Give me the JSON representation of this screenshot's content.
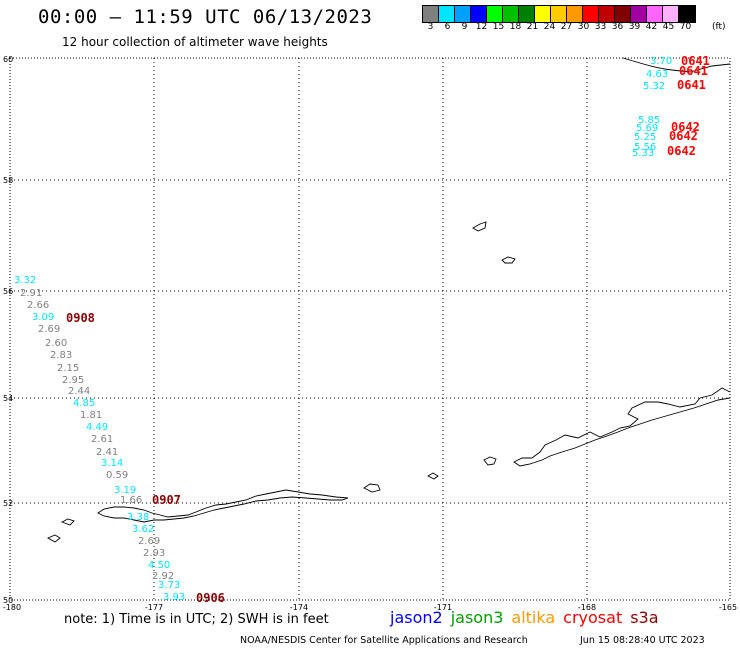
{
  "header": {
    "title": "00:00 — 11:59 UTC 06/13/2023",
    "subtitle": "12 hour collection of altimeter wave heights"
  },
  "legend": {
    "unit": "(ft)",
    "bins": [
      {
        "label": "3",
        "color": "#808080"
      },
      {
        "label": "6",
        "color": "#00e5ff"
      },
      {
        "label": "9",
        "color": "#00a0ff"
      },
      {
        "label": "12",
        "color": "#0000ff"
      },
      {
        "label": "15",
        "color": "#00ff00"
      },
      {
        "label": "18",
        "color": "#00c000"
      },
      {
        "label": "21",
        "color": "#008000"
      },
      {
        "label": "24",
        "color": "#ffff00"
      },
      {
        "label": "27",
        "color": "#ffcc00"
      },
      {
        "label": "30",
        "color": "#ff9900"
      },
      {
        "label": "33",
        "color": "#ff0000"
      },
      {
        "label": "36",
        "color": "#c00000"
      },
      {
        "label": "39",
        "color": "#800000"
      },
      {
        "label": "42",
        "color": "#a000a0"
      },
      {
        "label": "45",
        "color": "#ff66ff"
      },
      {
        "label": "70",
        "color": "#ffb0ff"
      },
      {
        "label": "",
        "color": "#000000"
      }
    ]
  },
  "axes": {
    "lon_labels": [
      "-180",
      "-177",
      "-174",
      "-171",
      "-168",
      "-165"
    ],
    "lat_labels": [
      "60",
      "58",
      "56",
      "54",
      "52",
      "50"
    ]
  },
  "observations": [
    {
      "value": "3.70",
      "color": "#00e5ff"
    },
    {
      "value": "4.63",
      "color": "#00e5ff"
    },
    {
      "value": "5.32",
      "color": "#00e5ff"
    },
    {
      "value": "5.85",
      "color": "#00e5ff"
    },
    {
      "value": "5.69",
      "color": "#00e5ff"
    },
    {
      "value": "5.25",
      "color": "#00e5ff"
    },
    {
      "value": "5.56",
      "color": "#00e5ff"
    },
    {
      "value": "5.33",
      "color": "#00e5ff"
    },
    {
      "value": "3.32",
      "color": "#00e5ff"
    },
    {
      "value": "2.91",
      "color": "#808080"
    },
    {
      "value": "2.66",
      "color": "#808080"
    },
    {
      "value": "3.09",
      "color": "#00e5ff"
    },
    {
      "value": "2.69",
      "color": "#808080"
    },
    {
      "value": "2.60",
      "color": "#808080"
    },
    {
      "value": "2.83",
      "color": "#808080"
    },
    {
      "value": "2.15",
      "color": "#808080"
    },
    {
      "value": "2.95",
      "color": "#808080"
    },
    {
      "value": "2.44",
      "color": "#808080"
    },
    {
      "value": "4.85",
      "color": "#00e5ff"
    },
    {
      "value": "1.81",
      "color": "#808080"
    },
    {
      "value": "4.49",
      "color": "#00e5ff"
    },
    {
      "value": "2.61",
      "color": "#808080"
    },
    {
      "value": "2.41",
      "color": "#808080"
    },
    {
      "value": "3.14",
      "color": "#00e5ff"
    },
    {
      "value": "0.59",
      "color": "#808080"
    },
    {
      "value": "3.19",
      "color": "#00e5ff"
    },
    {
      "value": "1.66",
      "color": "#808080"
    },
    {
      "value": "3.38",
      "color": "#00e5ff"
    },
    {
      "value": "3.62",
      "color": "#00e5ff"
    },
    {
      "value": "2.69",
      "color": "#808080"
    },
    {
      "value": "2.93",
      "color": "#808080"
    },
    {
      "value": "4.50",
      "color": "#00e5ff"
    },
    {
      "value": "2.92",
      "color": "#808080"
    },
    {
      "value": "3.73",
      "color": "#00e5ff"
    },
    {
      "value": "3.93",
      "color": "#00e5ff"
    }
  ],
  "pass_times": [
    {
      "label": "0641",
      "color": "#ff0000"
    },
    {
      "label": "0641",
      "color": "#ff0000"
    },
    {
      "label": "0641",
      "color": "#ff0000"
    },
    {
      "label": "0642",
      "color": "#ff0000"
    },
    {
      "label": "0642",
      "color": "#ff0000"
    },
    {
      "label": "0642",
      "color": "#ff0000"
    },
    {
      "label": "0908",
      "color": "#8b0000"
    },
    {
      "label": "0907",
      "color": "#8b0000"
    },
    {
      "label": "0906",
      "color": "#8b0000"
    }
  ],
  "footer": {
    "note": "note: 1) Time is in UTC; 2) SWH is in feet",
    "missions": [
      {
        "name": "jason2",
        "color": "#0000ff"
      },
      {
        "name": "jason3",
        "color": "#00a000"
      },
      {
        "name": "altika",
        "color": "#ff9900"
      },
      {
        "name": "cryosat",
        "color": "#ff0000"
      },
      {
        "name": "s3a",
        "color": "#8b0000"
      }
    ],
    "credit": "NOAA/NESDIS Center for Satellite Applications and Research",
    "timestamp": "Jun 15 08:28:40 UTC 2023"
  }
}
